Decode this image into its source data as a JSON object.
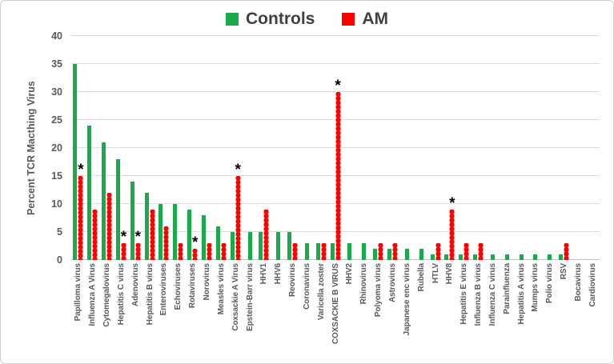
{
  "colors": {
    "controls": "#1aa94b",
    "am": "#fe0000",
    "axis_text": "#595959",
    "legend_text": "#404040",
    "gridline": "#dcdcdc"
  },
  "chart_data": {
    "type": "bar",
    "title": "",
    "xlabel": "",
    "ylabel": "Percent TCR Macthing Virus",
    "ylim": [
      0,
      40
    ],
    "yticks": [
      0,
      5,
      10,
      15,
      20,
      25,
      30,
      35,
      40
    ],
    "grid": true,
    "legend_position": "top-center",
    "categories": [
      "Papilloma virus",
      "Influenza A Virus",
      "Cytomegalovirus",
      "Hepatitis C virus",
      "Adenovirus",
      "Hepatitis B virus",
      "Enteroviruses",
      "Echoviruses",
      "Rotaviruses",
      "Norovirus",
      "Measles virus",
      "Coxsackie A Virus",
      "Epstein-Barr virus",
      "HHV1",
      "HHV6",
      "Reovirus",
      "Coronavirus",
      "Varicella zoster",
      "COXSACKIE B VIRUS",
      "HHV2",
      "Rhinovirus",
      "Polyoma virus",
      "Astrovirus",
      "Japanese enc virus",
      "Rubella",
      "HTLV",
      "HHV8",
      "Hepatitis E virus",
      "Influenza B virus",
      "Influenza C virus",
      "Parainfluenza",
      "Hepatitis A virus",
      "Mumps virus",
      "Polio virus",
      "RSV",
      "Bocavirus",
      "Cardiovirus"
    ],
    "series": [
      {
        "name": "Controls",
        "color": "#1aa94b",
        "values": [
          35,
          24,
          21,
          18,
          14,
          12,
          10,
          10,
          9,
          8,
          6,
          5,
          5,
          5,
          5,
          5,
          3,
          3,
          3,
          3,
          3,
          2,
          2,
          2,
          2,
          1,
          1,
          1,
          1,
          1,
          1,
          1,
          1,
          1,
          1,
          0,
          0
        ]
      },
      {
        "name": "AM",
        "color": "#fe0000",
        "values": [
          15,
          9,
          12,
          3,
          3,
          9,
          6,
          3,
          2,
          3,
          3,
          15,
          0,
          9,
          0,
          3,
          0,
          3,
          30,
          0,
          0,
          3,
          3,
          0,
          0,
          3,
          9,
          3,
          3,
          0,
          0,
          0,
          0,
          0,
          3,
          0,
          0
        ]
      }
    ],
    "annotations": {
      "symbol": "*",
      "on_series": "AM",
      "category_indexes": [
        0,
        3,
        4,
        8,
        11,
        18,
        26
      ]
    }
  }
}
